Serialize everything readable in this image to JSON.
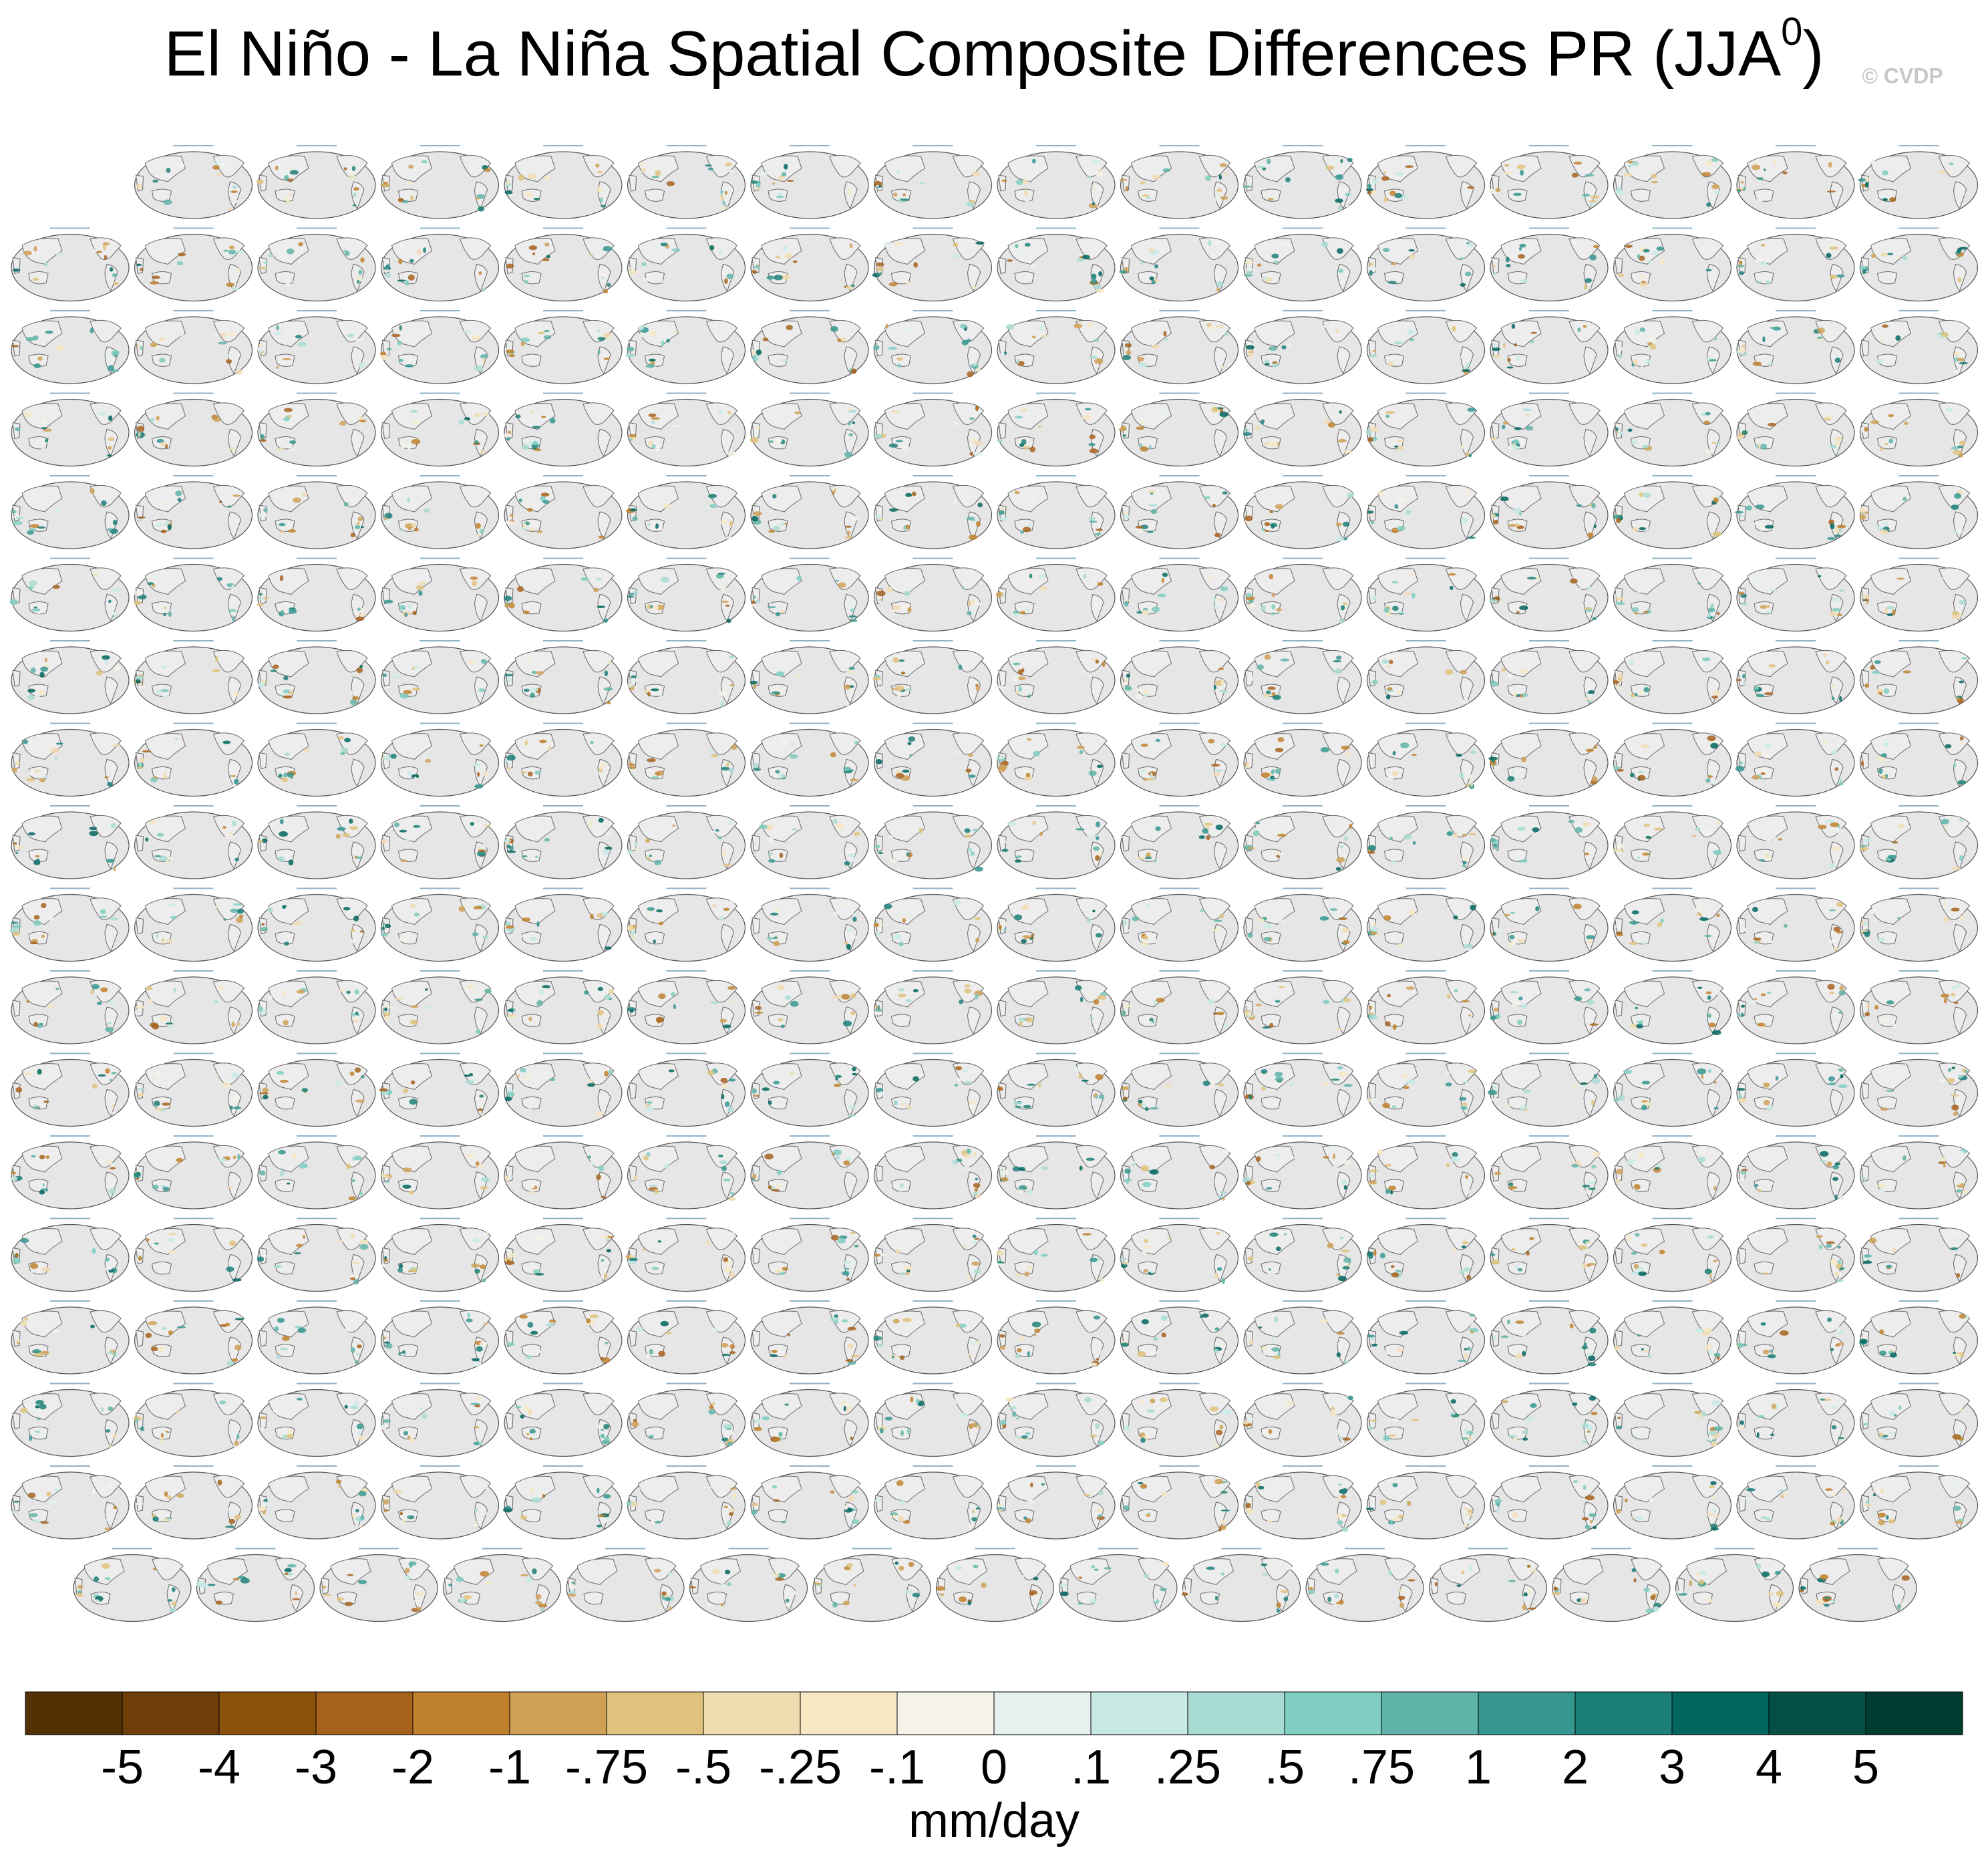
{
  "title": "El Niño - La Niña Spatial Composite Differences PR (JJA",
  "title_superscript": "0",
  "title_close": ")",
  "watermark": "© CVDP",
  "colorbar": {
    "colors": [
      "#543005",
      "#6e3d08",
      "#8c510a",
      "#a6621c",
      "#bf812d",
      "#cfa056",
      "#dfc27d",
      "#f0dcb0",
      "#f6e8c3",
      "#f5f2ea",
      "#e6f0ee",
      "#c7eae5",
      "#a8dcd3",
      "#80cdc1",
      "#5fb3a8",
      "#35978f",
      "#1b7f77",
      "#01665e",
      "#044f46",
      "#003c30"
    ],
    "ticks": [
      -5,
      -4,
      -3,
      -2,
      -1,
      {
        "value": -0.75,
        "label": "-.75"
      },
      {
        "value": -0.5,
        "label": "-.5"
      },
      {
        "value": -0.25,
        "label": "-.25"
      },
      {
        "value": -0.1,
        "label": "-.1"
      },
      0,
      {
        "value": 0.1,
        "label": ".1"
      },
      {
        "value": 0.25,
        "label": ".25"
      },
      {
        "value": 0.5,
        "label": ".5"
      },
      {
        "value": 0.75,
        "label": ".75"
      },
      1,
      2,
      3,
      4,
      5
    ],
    "units": "mm/day"
  }
}
